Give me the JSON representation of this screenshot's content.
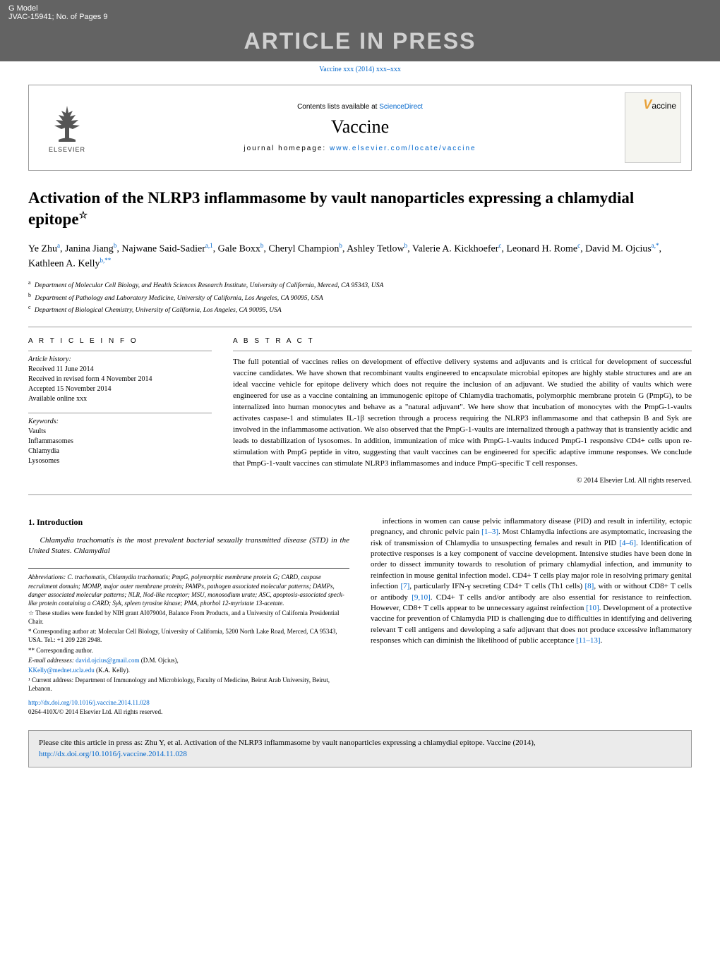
{
  "header": {
    "gmodel": "G Model",
    "docid": "JVAC-15941;   No. of Pages 9",
    "banner": "ARTICLE IN PRESS",
    "doi_line_prefix": "Vaccine xxx (2014) xxx–xxx"
  },
  "journal_box": {
    "contents_prefix": "Contents lists available at ",
    "contents_link": "ScienceDirect",
    "journal_name": "Vaccine",
    "homepage_prefix": "journal homepage: ",
    "homepage_link": "www.elsevier.com/locate/vaccine",
    "elsevier": "ELSEVIER",
    "cover_text": "accine"
  },
  "article": {
    "title": "Activation of the NLRP3 inflammasome by vault nanoparticles expressing a chlamydial epitope",
    "title_star": "☆",
    "authors_html": "Ye Zhu<sup>a</sup>, Janina Jiang<sup>b</sup>, Najwane Said-Sadier<sup>a,1</sup>, Gale Boxx<sup>b</sup>, Cheryl Champion<sup>b</sup>, Ashley Tetlow<sup>b</sup>, Valerie A. Kickhoefer<sup>c</sup>, Leonard H. Rome<sup>c</sup>, David M. Ojcius<sup>a,*</sup>, Kathleen A. Kelly<sup>b,**</sup>",
    "affiliations": [
      {
        "sup": "a",
        "text": "Department of Molecular Cell Biology, and Health Sciences Research Institute, University of California, Merced, CA 95343, USA"
      },
      {
        "sup": "b",
        "text": "Department of Pathology and Laboratory Medicine, University of California, Los Angeles, CA 90095, USA"
      },
      {
        "sup": "c",
        "text": "Department of Biological Chemistry, University of California, Los Angeles, CA 90095, USA"
      }
    ]
  },
  "info": {
    "title": "A R T I C L E   I N F O",
    "history_label": "Article history:",
    "history": [
      "Received 11 June 2014",
      "Received in revised form 4 November 2014",
      "Accepted 15 November 2014",
      "Available online xxx"
    ],
    "keywords_label": "Keywords:",
    "keywords": [
      "Vaults",
      "Inflammasomes",
      "Chlamydia",
      "Lysosomes"
    ]
  },
  "abstract": {
    "title": "A B S T R A C T",
    "text": "The full potential of vaccines relies on development of effective delivery systems and adjuvants and is critical for development of successful vaccine candidates. We have shown that recombinant vaults engineered to encapsulate microbial epitopes are highly stable structures and are an ideal vaccine vehicle for epitope delivery which does not require the inclusion of an adjuvant. We studied the ability of vaults which were engineered for use as a vaccine containing an immunogenic epitope of Chlamydia trachomatis, polymorphic membrane protein G (PmpG), to be internalized into human monocytes and behave as a \"natural adjuvant\". We here show that incubation of monocytes with the PmpG-1-vaults activates caspase-1 and stimulates IL-1β secretion through a process requiring the NLRP3 inflammasome and that cathepsin B and Syk are involved in the inflammasome activation. We also observed that the PmpG-1-vaults are internalized through a pathway that is transiently acidic and leads to destabilization of lysosomes. In addition, immunization of mice with PmpG-1-vaults induced PmpG-1 responsive CD4+ cells upon re-stimulation with PmpG peptide in vitro, suggesting that vault vaccines can be engineered for specific adaptive immune responses. We conclude that PmpG-1-vault vaccines can stimulate NLRP3 inflammasomes and induce PmpG-specific T cell responses.",
    "copyright": "© 2014 Elsevier Ltd. All rights reserved."
  },
  "body": {
    "heading": "1.  Introduction",
    "left_para": "Chlamydia trachomatis is the most prevalent bacterial sexually transmitted disease (STD) in the United States. Chlamydial",
    "right_para_parts": [
      "infections in women can cause pelvic inflammatory disease (PID) and result in infertility, ectopic pregnancy, and chronic pelvic pain ",
      "[1–3]",
      ". Most Chlamydia infections are asymptomatic, increasing the risk of transmission of Chlamydia to unsuspecting females and result in PID ",
      "[4–6]",
      ". Identification of protective responses is a key component of vaccine development. Intensive studies have been done in order to dissect immunity towards to resolution of primary chlamydial infection, and immunity to reinfection in mouse genital infection model. CD4+ T cells play major role in resolving primary genital infection ",
      "[7]",
      ", particularly IFN-γ secreting CD4+ T cells (Th1 cells) ",
      "[8]",
      ", with or without CD8+ T cells or antibody ",
      "[9,10]",
      ". CD4+ T cells and/or antibody are also essential for resistance to reinfection. However, CD8+ T cells appear to be unnecessary against reinfection ",
      "[10]",
      ". Development of a protective vaccine for prevention of Chlamydia PID is challenging due to difficulties in identifying and delivering relevant T cell antigens and developing a safe adjuvant that does not produce excessive inflammatory responses which can diminish the likelihood of public acceptance ",
      "[11–13]",
      "."
    ]
  },
  "footnotes": {
    "abbrev": "Abbreviations: C. trachomatis, Chlamydia trachomatis; PmpG, polymorphic membrane protein G; CARD, caspase recruitment domain; MOMP, major outer membrane protein; PAMPs, pathogen associated molecular patterns; DAMPs, danger associated molecular patterns; NLR, Nod-like receptor; MSU, monosodium urate; ASC, apoptosis-associated speck-like protein containing a CARD; Syk, spleen tyrosine kinase; PMA, phorbol 12-myristate 13-acetate.",
    "star": "☆ These studies were funded by NIH grant AI079004, Balance From Products, and a University of California Presidential Chair.",
    "corr1": "* Corresponding author at: Molecular Cell Biology, University of California, 5200 North Lake Road, Merced, CA 95343, USA. Tel.: +1 209 228 2948.",
    "corr2": "** Corresponding author.",
    "email_label": "E-mail addresses: ",
    "email1": "david.ojcius@gmail.com",
    "email1_suffix": " (D.M. Ojcius),",
    "email2": "KKelly@mednet.ucla.edu",
    "email2_suffix": " (K.A. Kelly).",
    "note1": "¹ Current address: Department of Immunology and Microbiology, Faculty of Medicine, Beirut Arab University, Beirut, Lebanon.",
    "doi_link": "http://dx.doi.org/10.1016/j.vaccine.2014.11.028",
    "issn": "0264-410X/© 2014 Elsevier Ltd. All rights reserved."
  },
  "cite_box": {
    "text_prefix": "Please cite this article in press as: Zhu Y, et al. Activation of the NLRP3 inflammasome by vault nanoparticles expressing a chlamydial epitope. Vaccine (2014), ",
    "link": "http://dx.doi.org/10.1016/j.vaccine.2014.11.028"
  },
  "colors": {
    "header_bg": "#636363",
    "link": "#0066cc",
    "cite_bg": "#ebebeb",
    "vaccine_v": "#e8a23a"
  }
}
